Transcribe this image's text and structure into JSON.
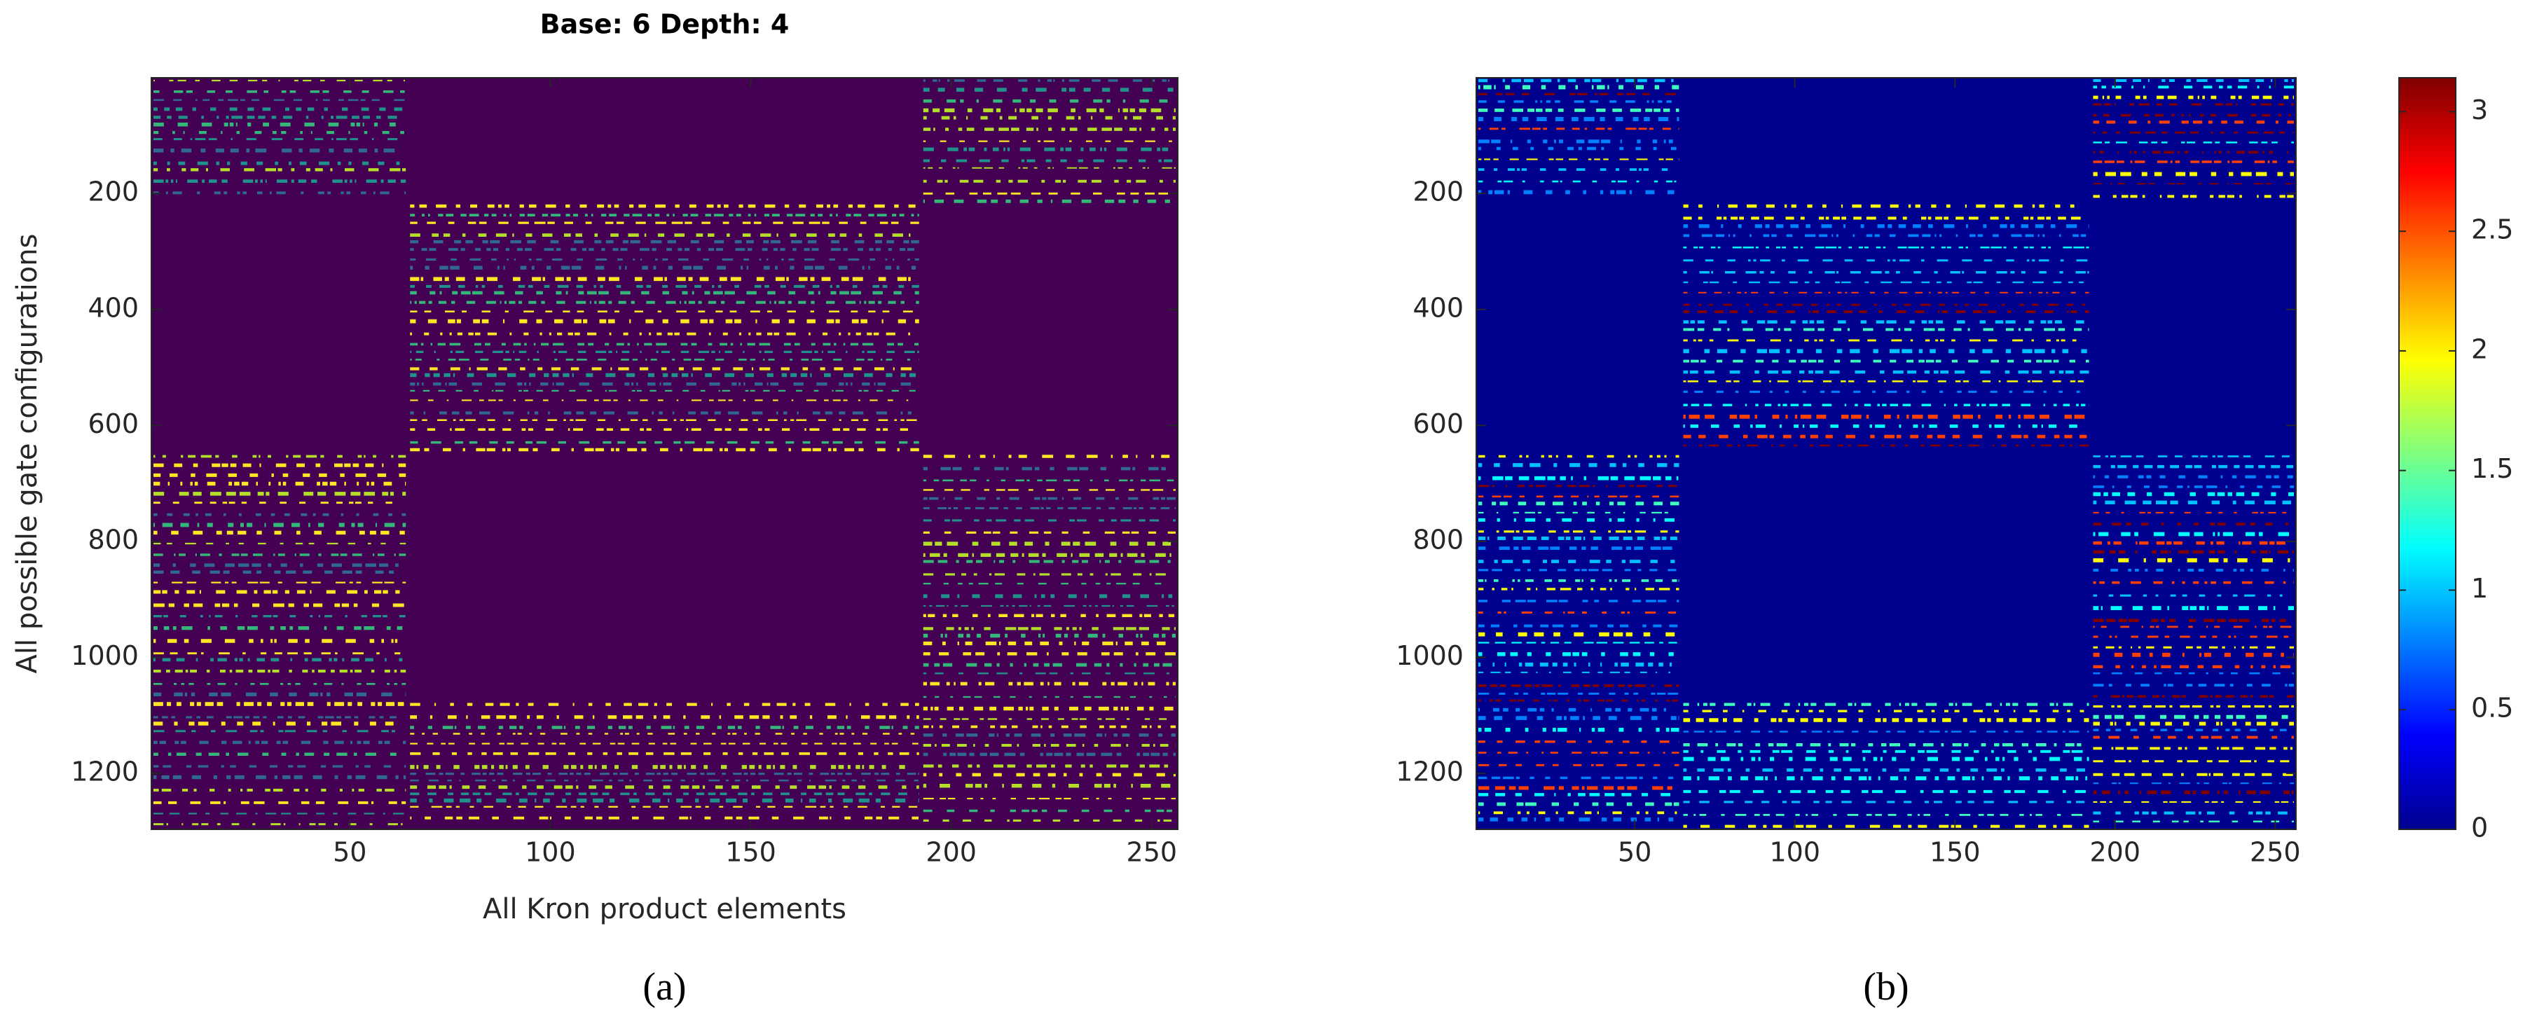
{
  "chart_data": [
    {
      "type": "heatmap",
      "title": "Base: 6 Depth: 4",
      "x_label": "All Kron product elements",
      "y_label": "All possible gate configurations",
      "panel_label": "(a)",
      "xlim": [
        0.5,
        256.5
      ],
      "ylim": [
        0.5,
        1296.5
      ],
      "y_direction": "reverse",
      "xticks": [
        50,
        100,
        150,
        200,
        250
      ],
      "yticks": [
        200,
        400,
        600,
        800,
        1000,
        1200
      ],
      "colormap": "viridis"
    },
    {
      "type": "heatmap",
      "panel_label": "(b)",
      "xlim": [
        0.5,
        256.5
      ],
      "ylim": [
        0.5,
        1296.5
      ],
      "y_direction": "reverse",
      "xticks": [
        50,
        100,
        150,
        200,
        250
      ],
      "yticks": [
        200,
        400,
        600,
        800,
        1000,
        1200
      ],
      "colormap": "jet",
      "colorbar": {
        "clim": [
          0,
          3.1416
        ],
        "ticks": [
          0,
          0.5,
          1,
          1.5,
          2,
          2.5,
          3
        ]
      }
    }
  ]
}
